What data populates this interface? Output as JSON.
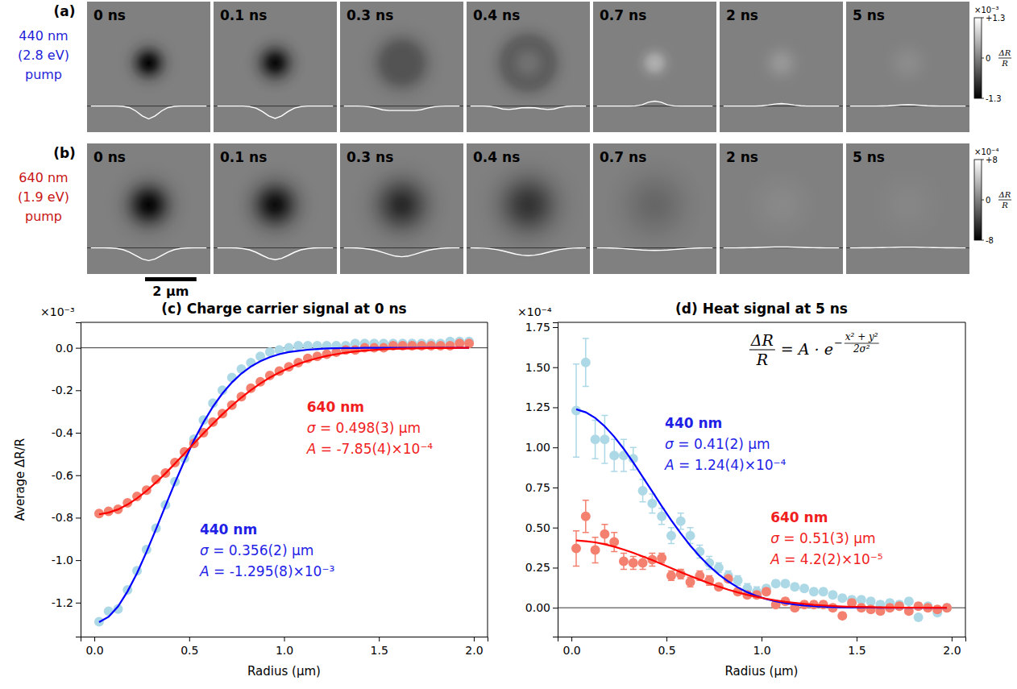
{
  "image_rows": {
    "xlim": [
      -2.4,
      2.4
    ],
    "profile_x": [
      -2.25,
      -2,
      -1.75,
      -1.5,
      -1.25,
      -1,
      -0.75,
      -0.5,
      -0.25,
      0,
      0.25,
      0.5,
      0.75,
      1,
      1.25,
      1.5,
      1.75,
      2,
      2.25
    ],
    "scale_bar": {
      "length": 2,
      "label": "2 µm"
    },
    "rows": [
      {
        "letter": "(a)",
        "label": [
          "440 nm",
          "(2.8 eV)",
          "pump"
        ],
        "color": "#1f1fd8",
        "colorbar": {
          "exponent": "×10⁻³",
          "range": [
            -1.3,
            1.3
          ],
          "ticks": [
            {
              "value": 1.3,
              "label": "+1.3"
            },
            0,
            -1.3
          ],
          "title": {
            "numerator": "ΔR",
            "denominator": "R"
          }
        },
        "frames": [
          {
            "time": "0 ns",
            "profile": [
              0,
              0,
              0,
              0,
              0,
              -0.03,
              -0.15,
              -0.5,
              -1.0,
              -1.3,
              -1.0,
              -0.5,
              -0.15,
              -0.03,
              0,
              0,
              0,
              0,
              0
            ]
          },
          {
            "time": "0.1 ns",
            "profile": [
              0,
              0,
              0,
              0,
              0,
              -0.05,
              -0.2,
              -0.55,
              -1.0,
              -1.25,
              -1.0,
              -0.55,
              -0.2,
              -0.05,
              0,
              0,
              0,
              0,
              0
            ]
          },
          {
            "time": "0.3 ns",
            "profile": [
              0,
              0,
              0,
              -0.02,
              -0.07,
              -0.2,
              -0.38,
              -0.45,
              -0.45,
              -0.45,
              -0.45,
              -0.45,
              -0.38,
              -0.2,
              -0.07,
              -0.02,
              0,
              0,
              0
            ]
          },
          {
            "time": "0.4 ns",
            "profile": [
              0,
              0,
              0,
              -0.03,
              -0.12,
              -0.3,
              -0.35,
              -0.28,
              -0.18,
              -0.15,
              -0.18,
              -0.28,
              -0.35,
              -0.3,
              -0.12,
              -0.03,
              0,
              0,
              0
            ]
          },
          {
            "time": "0.7 ns",
            "profile": [
              0,
              0,
              0,
              0,
              0,
              0,
              0.02,
              0.12,
              0.38,
              0.5,
              0.38,
              0.12,
              0.02,
              0,
              0,
              0,
              0,
              0,
              0
            ]
          },
          {
            "time": "2 ns",
            "profile": [
              0,
              0,
              0,
              0,
              0,
              0,
              0.03,
              0.1,
              0.2,
              0.25,
              0.2,
              0.1,
              0.03,
              0,
              0,
              0,
              0,
              0,
              0
            ]
          },
          {
            "time": "5 ns",
            "profile": [
              0,
              0,
              0,
              0,
              0,
              0.01,
              0.03,
              0.07,
              0.11,
              0.13,
              0.11,
              0.07,
              0.03,
              0.01,
              0,
              0,
              0,
              0,
              0
            ]
          }
        ]
      },
      {
        "letter": "(b)",
        "label": [
          "640 nm",
          "(1.9 eV)",
          "pump"
        ],
        "color": "#c81414",
        "colorbar": {
          "exponent": "×10⁻⁴",
          "range": [
            -8,
            8
          ],
          "ticks": [
            {
              "value": 8,
              "label": "+8"
            },
            0,
            -8
          ],
          "title": {
            "numerator": "ΔR",
            "denominator": "R"
          }
        },
        "frames": [
          {
            "time": "0 ns",
            "profile": [
              0,
              0,
              0,
              -0.1,
              -0.35,
              -1.1,
              -2.6,
              -4.8,
              -6.9,
              -7.9,
              -6.9,
              -4.8,
              -2.6,
              -1.1,
              -0.35,
              -0.1,
              0,
              0,
              0
            ]
          },
          {
            "time": "0.1 ns",
            "profile": [
              0,
              0,
              0,
              -0.1,
              -0.45,
              -1.2,
              -2.7,
              -4.7,
              -6.5,
              -7.3,
              -6.5,
              -4.7,
              -2.7,
              -1.2,
              -0.45,
              -0.1,
              0,
              0,
              0
            ]
          },
          {
            "time": "0.3 ns",
            "profile": [
              0,
              0,
              -0.1,
              -0.3,
              -0.8,
              -1.6,
              -2.8,
              -4.0,
              -5.1,
              -5.5,
              -5.1,
              -4.0,
              -2.8,
              -1.6,
              -0.8,
              -0.3,
              -0.1,
              0,
              0
            ]
          },
          {
            "time": "0.4 ns",
            "profile": [
              0,
              -0.05,
              -0.15,
              -0.45,
              -1.0,
              -1.8,
              -2.8,
              -3.8,
              -4.5,
              -4.8,
              -4.5,
              -3.8,
              -2.8,
              -1.8,
              -1.0,
              -0.45,
              -0.15,
              -0.05,
              0
            ]
          },
          {
            "time": "0.7 ns",
            "profile": [
              0,
              0,
              -0.08,
              -0.2,
              -0.4,
              -0.7,
              -1.0,
              -1.3,
              -1.5,
              -1.6,
              -1.5,
              -1.3,
              -1.0,
              -0.7,
              -0.4,
              -0.2,
              -0.08,
              0,
              0
            ]
          },
          {
            "time": "2 ns",
            "profile": [
              0,
              0,
              0,
              0.05,
              0.1,
              0.2,
              0.3,
              0.45,
              0.55,
              0.6,
              0.55,
              0.45,
              0.3,
              0.2,
              0.1,
              0.05,
              0,
              0,
              0
            ]
          },
          {
            "time": "5 ns",
            "profile": [
              0,
              0,
              0.02,
              0.04,
              0.09,
              0.16,
              0.25,
              0.33,
              0.4,
              0.42,
              0.4,
              0.33,
              0.25,
              0.16,
              0.09,
              0.04,
              0.02,
              0,
              0
            ]
          }
        ]
      }
    ]
  },
  "chart_data": [
    {
      "type": "scatter",
      "title": "(c) Charge carrier signal at 0 ns",
      "x_label": "Radius (µm)",
      "y_label": "Average ΔR/R",
      "y_multiplier": "×10⁻³",
      "xlim": [
        -0.0725,
        2.0725
      ],
      "xticks": [
        {
          "value": 0,
          "label": "0.0"
        },
        0.5,
        {
          "value": 1,
          "label": "1.0"
        },
        1.5,
        {
          "value": 2,
          "label": "2.0"
        }
      ],
      "ylim": [
        -1.36,
        0.12
      ],
      "yticks": [
        -1.2,
        {
          "value": -1,
          "label": "-1.0"
        },
        -0.8,
        -0.6,
        -0.4,
        -0.2,
        {
          "value": 0,
          "label": "0.0"
        }
      ],
      "reference_y": 0,
      "x": [
        0.025,
        0.075,
        0.125,
        0.175,
        0.225,
        0.275,
        0.325,
        0.375,
        0.425,
        0.475,
        0.525,
        0.575,
        0.625,
        0.675,
        0.725,
        0.775,
        0.825,
        0.875,
        0.925,
        0.975,
        1.025,
        1.075,
        1.125,
        1.175,
        1.225,
        1.275,
        1.325,
        1.375,
        1.425,
        1.475,
        1.525,
        1.575,
        1.625,
        1.675,
        1.725,
        1.775,
        1.825,
        1.875,
        1.925,
        1.975
      ],
      "series": [
        {
          "name": "440 nm",
          "color": "#add8e6",
          "marker": "circle",
          "fit_color": "#0000ff",
          "text_color": "#1f1fe6",
          "values": [
            -1.29,
            -1.24,
            -1.23,
            -1.14,
            -1.05,
            -0.95,
            -0.85,
            -0.74,
            -0.63,
            -0.52,
            -0.43,
            -0.34,
            -0.26,
            -0.2,
            -0.14,
            -0.1,
            -0.07,
            -0.04,
            -0.02,
            -0.01,
            0,
            0.01,
            0.01,
            0.01,
            0.01,
            0.01,
            0.01,
            0.02,
            0.02,
            0.02,
            0.02,
            0.02,
            0.02,
            0.02,
            0.02,
            0.02,
            0.02,
            0.03,
            0.03,
            0.03
          ],
          "fit_values": [
            -1.292,
            -1.267,
            -1.218,
            -1.147,
            -1.061,
            -0.961,
            -0.854,
            -0.744,
            -0.635,
            -0.532,
            -0.436,
            -0.351,
            -0.277,
            -0.215,
            -0.163,
            -0.121,
            -0.088,
            -0.063,
            -0.044,
            -0.03,
            -0.02,
            -0.014,
            -0.009,
            -0.006,
            -0.003,
            -0.002,
            -0.001,
            -0.001,
            0,
            0,
            0,
            0,
            0,
            0,
            0,
            0,
            0,
            0,
            0,
            0
          ],
          "annotation": [
            "σ = 0.356(2) µm",
            "A = -1.295(8)×10⁻³"
          ]
        },
        {
          "name": "640 nm",
          "color": "#f4806f",
          "marker": "circle",
          "fit_color": "#ff0000",
          "text_color": "#f01e1e",
          "values": [
            -0.78,
            -0.77,
            -0.76,
            -0.73,
            -0.7,
            -0.67,
            -0.62,
            -0.59,
            -0.54,
            -0.49,
            -0.45,
            -0.4,
            -0.35,
            -0.31,
            -0.27,
            -0.23,
            -0.19,
            -0.16,
            -0.13,
            -0.11,
            -0.09,
            -0.07,
            -0.05,
            -0.04,
            -0.03,
            -0.02,
            -0.01,
            -0.01,
            0,
            0,
            0,
            0.01,
            0.01,
            0.01,
            0.01,
            0.01,
            0.01,
            0.01,
            0.02,
            0.02
          ],
          "fit_values": [
            -0.784,
            -0.776,
            -0.761,
            -0.738,
            -0.709,
            -0.674,
            -0.634,
            -0.591,
            -0.545,
            -0.498,
            -0.45,
            -0.403,
            -0.357,
            -0.313,
            -0.272,
            -0.234,
            -0.199,
            -0.168,
            -0.14,
            -0.116,
            -0.095,
            -0.076,
            -0.061,
            -0.049,
            -0.038,
            -0.03,
            -0.023,
            -0.017,
            -0.013,
            -0.01,
            -0.007,
            -0.005,
            -0.004,
            -0.003,
            -0.002,
            -0.001,
            -0.001,
            -0.001,
            0,
            0
          ],
          "annotation": [
            "σ = 0.498(3) µm",
            "A = -7.85(4)×10⁻⁴"
          ]
        }
      ]
    },
    {
      "type": "scatter",
      "title": "(d) Heat signal at 5 ns",
      "x_label": "Radius (µm)",
      "y_multiplier": "×10⁻⁴",
      "xlim": [
        -0.0725,
        2.0725
      ],
      "xticks": [
        {
          "value": 0,
          "label": "0.0"
        },
        0.5,
        {
          "value": 1,
          "label": "1.0"
        },
        1.5,
        {
          "value": 2,
          "label": "2.0"
        }
      ],
      "ylim": [
        -0.18,
        1.78
      ],
      "yticks": [
        {
          "value": 0,
          "label": "0.00"
        },
        0.25,
        {
          "value": 0.5,
          "label": "0.50"
        },
        0.75,
        {
          "value": 1,
          "label": "1.00"
        },
        1.25,
        {
          "value": 1.5,
          "label": "1.50"
        },
        1.75
      ],
      "reference_y": 0,
      "equation": {
        "lhs_numerator": "ΔR",
        "lhs_denominator": "R",
        "rhs": "= A · e",
        "exponent_sign": "−",
        "exponent_numerator": "x² + y²",
        "exponent_denominator": "2σ²"
      },
      "x": [
        0.025,
        0.075,
        0.125,
        0.175,
        0.225,
        0.275,
        0.325,
        0.375,
        0.425,
        0.475,
        0.525,
        0.575,
        0.625,
        0.675,
        0.725,
        0.775,
        0.825,
        0.875,
        0.925,
        0.975,
        1.025,
        1.075,
        1.125,
        1.175,
        1.225,
        1.275,
        1.325,
        1.375,
        1.425,
        1.475,
        1.525,
        1.575,
        1.625,
        1.675,
        1.725,
        1.775,
        1.825,
        1.875,
        1.925,
        1.975
      ],
      "series": [
        {
          "name": "440 nm",
          "color": "#add8e6",
          "marker": "circle",
          "fit_color": "#0000ff",
          "text_color": "#1f1fe6",
          "values": [
            1.23,
            1.53,
            1.05,
            1.05,
            0.95,
            0.95,
            0.93,
            0.73,
            0.65,
            0.57,
            0.45,
            0.54,
            0.45,
            0.35,
            0.28,
            0.25,
            0.2,
            0.17,
            0.12,
            0.1,
            0.12,
            0.15,
            0.15,
            0.13,
            0.12,
            0.1,
            0.1,
            0.08,
            0.06,
            0.05,
            0.05,
            0.04,
            0.02,
            0.03,
            0.02,
            0.04,
            -0.06,
            0.01,
            -0.03,
            0
          ],
          "errors": [
            0.29,
            0.15,
            0.12,
            0.15,
            0.1,
            0.1,
            0.07,
            0.07,
            0.06,
            0.05,
            0.05,
            0.05,
            0.05,
            0.04,
            0.04,
            0.03,
            0.03,
            0.03,
            0.03,
            0.03,
            0.02,
            0.02,
            0.02,
            0.02,
            0.02,
            0.02,
            0.02,
            0.02,
            0.02,
            0.02,
            0.02,
            0.02,
            0.02,
            0.02,
            0.02,
            0.02,
            0.02,
            0.02,
            0.02,
            0.02
          ],
          "fit_values": [
            1.238,
            1.219,
            1.184,
            1.132,
            1.067,
            0.991,
            0.906,
            0.816,
            0.725,
            0.634,
            0.546,
            0.464,
            0.388,
            0.32,
            0.26,
            0.208,
            0.164,
            0.127,
            0.097,
            0.073,
            0.054,
            0.04,
            0.029,
            0.02,
            0.014,
            0.01,
            0.007,
            0.004,
            0.003,
            0.002,
            0.001,
            0.001,
            0,
            0,
            0,
            0,
            0,
            0,
            0,
            0
          ],
          "annotation": [
            "σ = 0.41(2) µm",
            "A = 1.24(4)×10⁻⁴"
          ]
        },
        {
          "name": "640 nm",
          "color": "#f4806f",
          "marker": "circle",
          "fit_color": "#ff0000",
          "text_color": "#f01e1e",
          "values": [
            0.37,
            0.57,
            0.36,
            0.46,
            0.41,
            0.29,
            0.28,
            0.28,
            0.3,
            0.31,
            0.2,
            0.21,
            0.16,
            0.2,
            0.17,
            0.13,
            0.18,
            0.1,
            0.08,
            0.08,
            0.1,
            0.02,
            0.04,
            0,
            0.02,
            0.02,
            0.02,
            0,
            -0.05,
            0.03,
            0,
            -0.01,
            -0.02,
            0,
            0.01,
            -0.02,
            0.01,
            0,
            -0.01,
            0
          ],
          "errors": [
            0.11,
            0.1,
            0.08,
            0.06,
            0.06,
            0.05,
            0.04,
            0.04,
            0.04,
            0.03,
            0.03,
            0.03,
            0.03,
            0.03,
            0.03,
            0.02,
            0.02,
            0.02,
            0.02,
            0.02,
            0.02,
            0.02,
            0.02,
            0.02,
            0.02,
            0.02,
            0.02,
            0.02,
            0.02,
            0.02,
            0.02,
            0.02,
            0.02,
            0.02,
            0.02,
            0.02,
            0.02,
            0.02,
            0.02,
            0.02
          ],
          "fit_values": [
            0.42,
            0.415,
            0.408,
            0.396,
            0.381,
            0.363,
            0.343,
            0.32,
            0.297,
            0.272,
            0.247,
            0.222,
            0.198,
            0.175,
            0.153,
            0.132,
            0.113,
            0.096,
            0.081,
            0.068,
            0.056,
            0.046,
            0.037,
            0.03,
            0.024,
            0.018,
            0.014,
            0.011,
            0.008,
            0.006,
            0.005,
            0.004,
            0.003,
            0.002,
            0.001,
            0.001,
            0.001,
            0,
            0,
            0
          ],
          "annotation": [
            "σ = 0.51(3) µm",
            "A = 4.2(2)×10⁻⁵"
          ]
        }
      ]
    }
  ]
}
